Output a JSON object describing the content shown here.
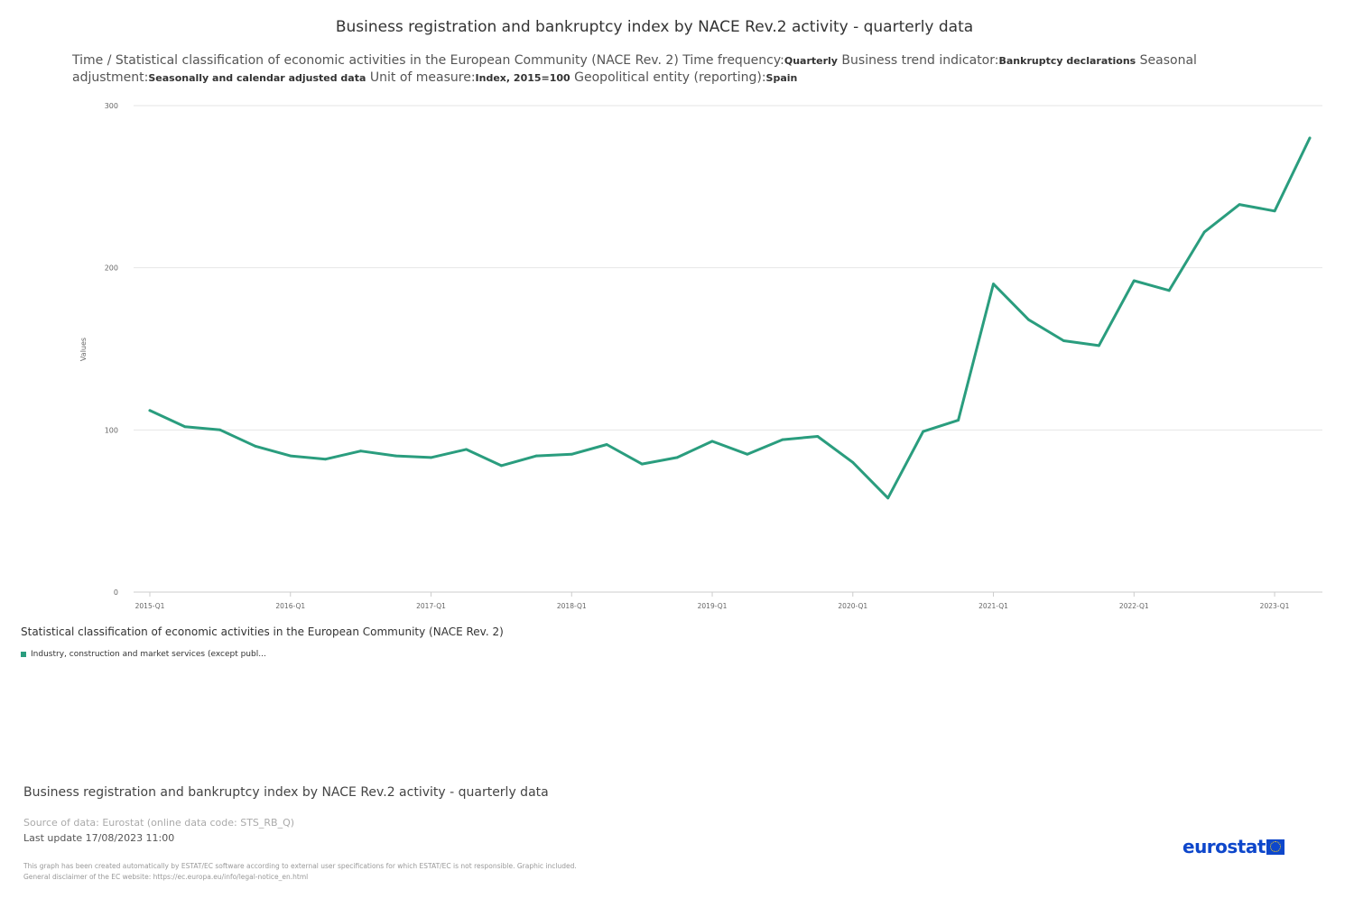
{
  "title": "Business registration and bankruptcy index by NACE Rev.2 activity - quarterly data",
  "subtitle": {
    "part1": "Time / Statistical classification of economic activities in the European Community (NACE Rev. 2)  Time frequency:",
    "freq": "Quarterly",
    "part2": "  Business trend indicator:",
    "indicator": "Bankruptcy declarations",
    "part3": "  Seasonal adjustment:",
    "adjustment": "Seasonally and calendar adjusted data",
    "part4": "  Unit of measure:",
    "unit": "Index, 2015=100",
    "part5": "  Geopolitical entity (reporting):",
    "geo": "Spain"
  },
  "legend": {
    "title": "Statistical classification of economic activities in the European Community (NACE Rev. 2)",
    "item": "Industry, construction and market services (except publ..."
  },
  "footer": {
    "title": "Business registration and bankruptcy index by NACE Rev.2 activity - quarterly data",
    "source": "Source of data: Eurostat (online data code: STS_RB_Q)",
    "updated": "Last update 17/08/2023 11:00",
    "disclaimer1": "This graph has been created automatically by ESTAT/EC software according to external user specifications for which ESTAT/EC is not responsible. Graphic included.",
    "disclaimer2": "General disclaimer of the EC website: https://ec.europa.eu/info/legal-notice_en.html",
    "logo": "eurostat"
  },
  "colors": {
    "series": "#2a9d7e",
    "grid": "#e6e6e6"
  },
  "chart_data": {
    "type": "line",
    "title": "Business registration and bankruptcy index by NACE Rev.2 activity - quarterly data",
    "xlabel": "",
    "ylabel": "Values",
    "ylim": [
      0,
      300
    ],
    "yticks": [
      0,
      100,
      200,
      300
    ],
    "ytick_labels": [
      "0",
      "100",
      "200",
      "300"
    ],
    "xtick_labels": [
      "2015-Q1",
      "2016-Q1",
      "2017-Q1",
      "2018-Q1",
      "2019-Q1",
      "2020-Q1",
      "2021-Q1",
      "2022-Q1",
      "2023-Q1"
    ],
    "x": [
      "2015-Q1",
      "2015-Q2",
      "2015-Q3",
      "2015-Q4",
      "2016-Q1",
      "2016-Q2",
      "2016-Q3",
      "2016-Q4",
      "2017-Q1",
      "2017-Q2",
      "2017-Q3",
      "2017-Q4",
      "2018-Q1",
      "2018-Q2",
      "2018-Q3",
      "2018-Q4",
      "2019-Q1",
      "2019-Q2",
      "2019-Q3",
      "2019-Q4",
      "2020-Q1",
      "2020-Q2",
      "2020-Q3",
      "2020-Q4",
      "2021-Q1",
      "2021-Q2",
      "2021-Q3",
      "2021-Q4",
      "2022-Q1",
      "2022-Q2",
      "2022-Q3",
      "2022-Q4",
      "2023-Q1",
      "2023-Q2"
    ],
    "series": [
      {
        "name": "Industry, construction and market services (except publ...",
        "values": [
          112,
          102,
          100,
          90,
          84,
          82,
          87,
          84,
          83,
          88,
          78,
          84,
          85,
          91,
          79,
          83,
          93,
          85,
          94,
          96,
          80,
          58,
          99,
          106,
          190,
          168,
          155,
          152,
          192,
          186,
          222,
          239,
          235,
          280
        ]
      }
    ]
  }
}
